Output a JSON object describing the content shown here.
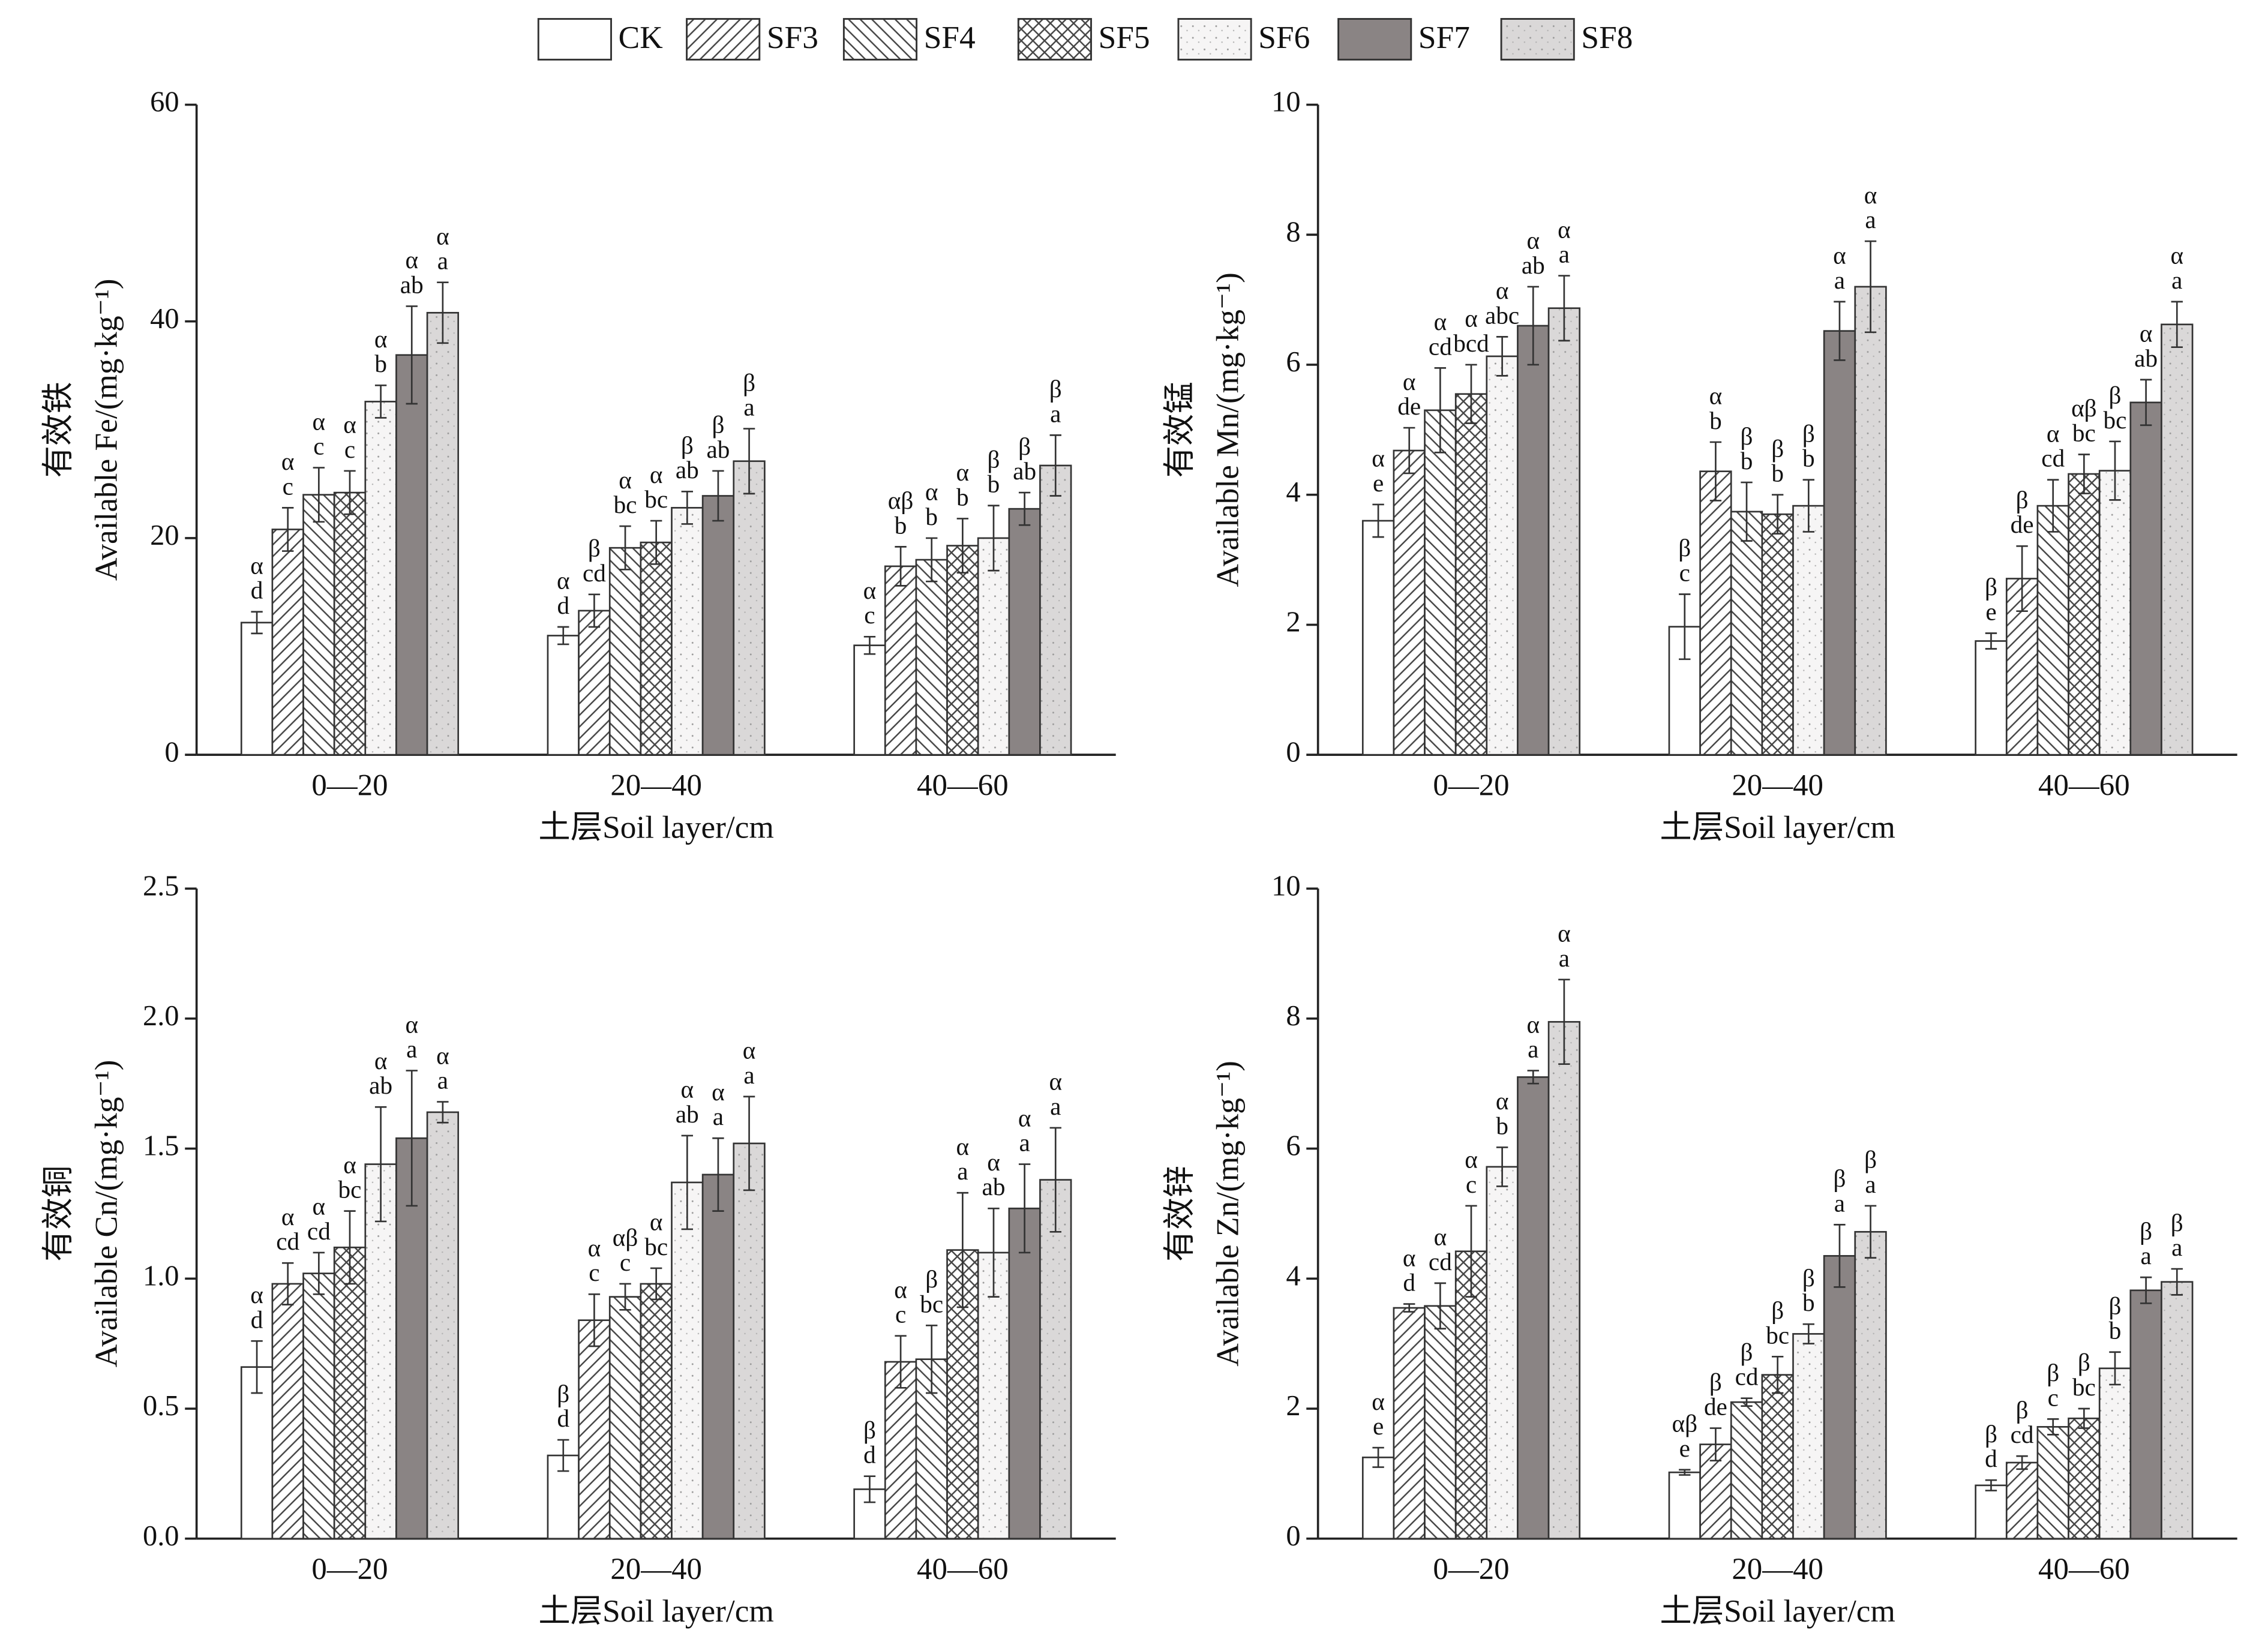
{
  "chart_data": [
    {
      "type": "bar",
      "legend": "top",
      "ylabel": [
        "有效铁",
        "Available Fe/(mg·kg⁻¹)"
      ],
      "xlabel": "土层Soil layer/cm",
      "categories": [
        "0—20",
        "20—40",
        "40—60"
      ],
      "ylim": [
        0,
        60
      ],
      "yticks": [
        0,
        20,
        40,
        60
      ],
      "series": [
        {
          "name": "CK",
          "color": "#ffffff",
          "pattern": "none",
          "values": [
            12.2,
            11.0,
            10.1
          ],
          "errors": [
            1.0,
            0.8,
            0.8
          ],
          "sig_greek": [
            "α",
            "α",
            "α"
          ],
          "sig_letters": [
            "d",
            "d",
            "c"
          ]
        },
        {
          "name": "SF3",
          "color": "#ffffff",
          "pattern": "forward",
          "values": [
            20.8,
            13.3,
            17.4
          ],
          "errors": [
            2.0,
            1.5,
            1.8
          ],
          "sig_greek": [
            "α",
            "β",
            "αβ"
          ],
          "sig_letters": [
            "c",
            "cd",
            "b"
          ]
        },
        {
          "name": "SF4",
          "color": "#ffffff",
          "pattern": "backward",
          "values": [
            24.0,
            19.1,
            18.0
          ],
          "errors": [
            2.5,
            2.0,
            2.0
          ],
          "sig_greek": [
            "α",
            "α",
            "α"
          ],
          "sig_letters": [
            "c",
            "bc",
            "b"
          ]
        },
        {
          "name": "SF5",
          "color": "#ffffff",
          "pattern": "cross",
          "values": [
            24.2,
            19.6,
            19.3
          ],
          "errors": [
            2.0,
            2.0,
            2.5
          ],
          "sig_greek": [
            "α",
            "α",
            "α"
          ],
          "sig_letters": [
            "c",
            "bc",
            "b"
          ]
        },
        {
          "name": "SF6",
          "color": "#f6f5f5",
          "pattern": "speckle",
          "values": [
            32.6,
            22.8,
            20.0
          ],
          "errors": [
            1.5,
            1.5,
            3.0
          ],
          "sig_greek": [
            "α",
            "β",
            "β"
          ],
          "sig_letters": [
            "b",
            "ab",
            "b"
          ]
        },
        {
          "name": "SF7",
          "color": "#8a8484",
          "pattern": "none",
          "values": [
            36.9,
            23.9,
            22.7
          ],
          "errors": [
            4.5,
            2.3,
            1.5
          ],
          "sig_greek": [
            "α",
            "β",
            "β"
          ],
          "sig_letters": [
            "ab",
            "ab",
            "ab"
          ]
        },
        {
          "name": "SF8",
          "color": "#dad8d8",
          "pattern": "speckle",
          "values": [
            40.8,
            27.1,
            26.7
          ],
          "errors": [
            2.8,
            3.0,
            2.8
          ],
          "sig_greek": [
            "α",
            "β",
            "β"
          ],
          "sig_letters": [
            "a",
            "a",
            "a"
          ]
        }
      ]
    },
    {
      "type": "bar",
      "ylabel": [
        "有效锰",
        "Available Mn/(mg·kg⁻¹)"
      ],
      "xlabel": "土层Soil layer/cm",
      "categories": [
        "0—20",
        "20—40",
        "40—60"
      ],
      "ylim": [
        0,
        10
      ],
      "yticks": [
        0,
        2,
        4,
        6,
        8,
        10
      ],
      "series": [
        {
          "values": [
            3.6,
            1.97,
            1.75
          ],
          "errors": [
            0.25,
            0.5,
            0.12
          ],
          "sig_greek": [
            "α",
            "β",
            "β"
          ],
          "sig_letters": [
            "e",
            "c",
            "e"
          ]
        },
        {
          "values": [
            4.68,
            4.36,
            2.71
          ],
          "errors": [
            0.35,
            0.45,
            0.5
          ],
          "sig_greek": [
            "α",
            "α",
            "β"
          ],
          "sig_letters": [
            "de",
            "b",
            "de"
          ]
        },
        {
          "values": [
            5.3,
            3.74,
            3.83
          ],
          "errors": [
            0.65,
            0.45,
            0.4
          ],
          "sig_greek": [
            "α",
            "β",
            "α"
          ],
          "sig_letters": [
            "cd",
            "b",
            "cd"
          ]
        },
        {
          "values": [
            5.55,
            3.7,
            4.32
          ],
          "errors": [
            0.45,
            0.3,
            0.3
          ],
          "sig_greek": [
            "α",
            "β",
            "αβ"
          ],
          "sig_letters": [
            "bcd",
            "b",
            "bc"
          ]
        },
        {
          "values": [
            6.13,
            3.83,
            4.37
          ],
          "errors": [
            0.3,
            0.4,
            0.45
          ],
          "sig_greek": [
            "α",
            "β",
            "β"
          ],
          "sig_letters": [
            "abc",
            "b",
            "bc"
          ]
        },
        {
          "values": [
            6.6,
            6.52,
            5.42
          ],
          "errors": [
            0.6,
            0.45,
            0.35
          ],
          "sig_greek": [
            "α",
            "α",
            "α"
          ],
          "sig_letters": [
            "ab",
            "a",
            "ab"
          ]
        },
        {
          "values": [
            6.87,
            7.2,
            6.62
          ],
          "errors": [
            0.5,
            0.7,
            0.35
          ],
          "sig_greek": [
            "α",
            "α",
            "α"
          ],
          "sig_letters": [
            "a",
            "a",
            "a"
          ]
        }
      ]
    },
    {
      "type": "bar",
      "ylabel": [
        "有效铜",
        "Available Cn/(mg·kg⁻¹)"
      ],
      "xlabel": "土层Soil layer/cm",
      "categories": [
        "0—20",
        "20—40",
        "40—60"
      ],
      "ylim": [
        0,
        2.5
      ],
      "yticks": [
        {
          "value": 0,
          "label": "0.0"
        },
        0.5,
        {
          "value": 1,
          "label": "1.0"
        },
        1.5,
        {
          "value": 2,
          "label": "2.0"
        },
        2.5
      ],
      "series": [
        {
          "values": [
            0.66,
            0.32,
            0.19
          ],
          "errors": [
            0.1,
            0.06,
            0.05
          ],
          "sig_greek": [
            "α",
            "β",
            "β"
          ],
          "sig_letters": [
            "d",
            "d",
            "d"
          ]
        },
        {
          "values": [
            0.98,
            0.84,
            0.68
          ],
          "errors": [
            0.08,
            0.1,
            0.1
          ],
          "sig_greek": [
            "α",
            "α",
            "α"
          ],
          "sig_letters": [
            "cd",
            "c",
            "c"
          ]
        },
        {
          "values": [
            1.02,
            0.93,
            0.69
          ],
          "errors": [
            0.08,
            0.05,
            0.13
          ],
          "sig_greek": [
            "α",
            "αβ",
            "β"
          ],
          "sig_letters": [
            "cd",
            "c",
            "bc"
          ]
        },
        {
          "values": [
            1.12,
            0.98,
            1.11
          ],
          "errors": [
            0.14,
            0.06,
            0.22
          ],
          "sig_greek": [
            "α",
            "α",
            "α"
          ],
          "sig_letters": [
            "bc",
            "bc",
            "a"
          ]
        },
        {
          "values": [
            1.44,
            1.37,
            1.1
          ],
          "errors": [
            0.22,
            0.18,
            0.17
          ],
          "sig_greek": [
            "α",
            "α",
            "α"
          ],
          "sig_letters": [
            "ab",
            "ab",
            "ab"
          ]
        },
        {
          "values": [
            1.54,
            1.4,
            1.27
          ],
          "errors": [
            0.26,
            0.14,
            0.17
          ],
          "sig_greek": [
            "α",
            "α",
            "α"
          ],
          "sig_letters": [
            "a",
            "a",
            "a"
          ]
        },
        {
          "values": [
            1.64,
            1.52,
            1.38
          ],
          "errors": [
            0.04,
            0.18,
            0.2
          ],
          "sig_greek": [
            "α",
            "α",
            "α"
          ],
          "sig_letters": [
            "a",
            "a",
            "a"
          ]
        }
      ]
    },
    {
      "type": "bar",
      "ylabel": [
        "有效锌",
        "Available Zn/(mg·kg⁻¹)"
      ],
      "xlabel": "土层Soil layer/cm",
      "categories": [
        "0—20",
        "20—40",
        "40—60"
      ],
      "ylim": [
        0,
        10
      ],
      "yticks": [
        0,
        2,
        4,
        6,
        8,
        10
      ],
      "series": [
        {
          "values": [
            1.25,
            1.02,
            0.82
          ],
          "errors": [
            0.15,
            0.04,
            0.08
          ],
          "sig_greek": [
            "α",
            "αβ",
            "β"
          ],
          "sig_letters": [
            "e",
            "e",
            "d"
          ]
        },
        {
          "values": [
            3.55,
            1.45,
            1.17
          ],
          "errors": [
            0.06,
            0.25,
            0.1
          ],
          "sig_greek": [
            "α",
            "β",
            "β"
          ],
          "sig_letters": [
            "d",
            "de",
            "cd"
          ]
        },
        {
          "values": [
            3.58,
            2.1,
            1.72
          ],
          "errors": [
            0.35,
            0.06,
            0.12
          ],
          "sig_greek": [
            "α",
            "β",
            "β"
          ],
          "sig_letters": [
            "cd",
            "cd",
            "c"
          ]
        },
        {
          "values": [
            4.42,
            2.52,
            1.85
          ],
          "errors": [
            0.7,
            0.28,
            0.15
          ],
          "sig_greek": [
            "α",
            "β",
            "β"
          ],
          "sig_letters": [
            "c",
            "bc",
            "bc"
          ]
        },
        {
          "values": [
            5.72,
            3.15,
            2.62
          ],
          "errors": [
            0.3,
            0.15,
            0.25
          ],
          "sig_greek": [
            "α",
            "β",
            "β"
          ],
          "sig_letters": [
            "b",
            "b",
            "b"
          ]
        },
        {
          "values": [
            7.1,
            4.35,
            3.82
          ],
          "errors": [
            0.1,
            0.48,
            0.2
          ],
          "sig_greek": [
            "α",
            "β",
            "β"
          ],
          "sig_letters": [
            "a",
            "a",
            "a"
          ]
        },
        {
          "values": [
            7.95,
            4.72,
            3.95
          ],
          "errors": [
            0.65,
            0.4,
            0.2
          ],
          "sig_greek": [
            "α",
            "β",
            "β"
          ],
          "sig_letters": [
            "a",
            "a",
            "a"
          ]
        }
      ]
    }
  ]
}
